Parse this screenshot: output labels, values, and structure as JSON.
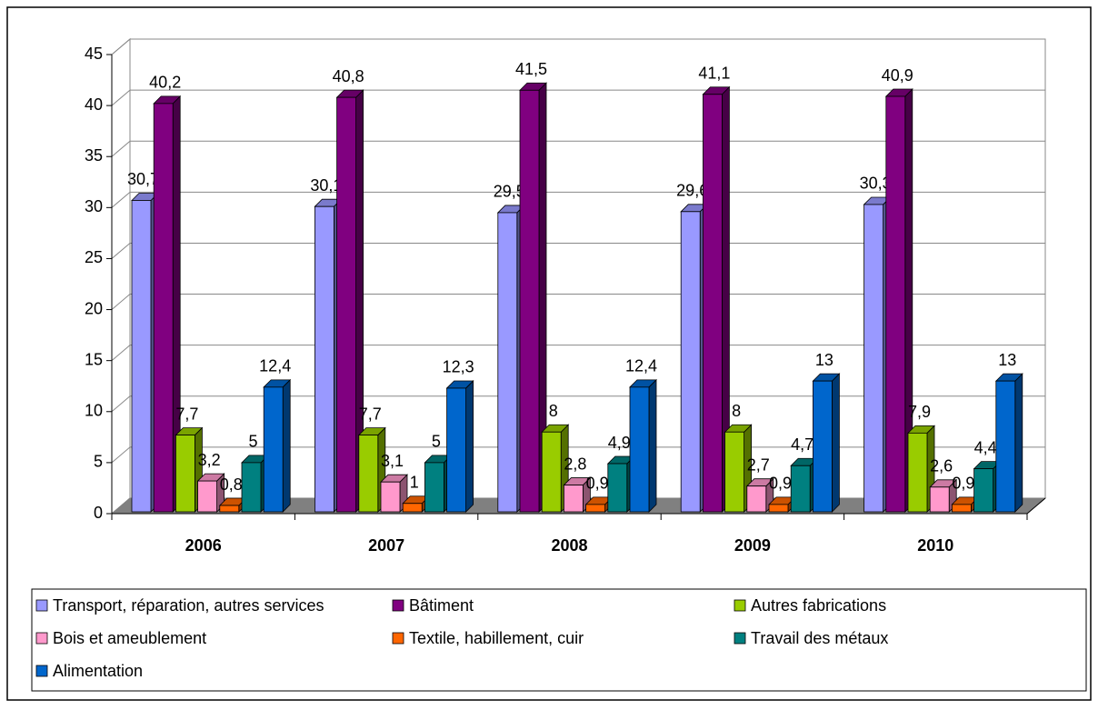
{
  "chart_data": {
    "type": "bar3d",
    "categories": [
      "2006",
      "2007",
      "2008",
      "2009",
      "2010"
    ],
    "series": [
      {
        "name": "Transport, réparation, autres services",
        "color": "#9999ff",
        "values": [
          30.7,
          30.1,
          29.5,
          29.6,
          30.3
        ],
        "value_labels": [
          "30,7",
          "30,1",
          "29,5",
          "29,6",
          "30,3"
        ]
      },
      {
        "name": "Bâtiment",
        "color": "#800080",
        "values": [
          40.2,
          40.8,
          41.5,
          41.1,
          40.9
        ],
        "value_labels": [
          "40,2",
          "40,8",
          "41,5",
          "41,1",
          "40,9"
        ]
      },
      {
        "name": "Autres fabrications",
        "color": "#99cc00",
        "values": [
          7.7,
          7.7,
          8,
          8,
          7.9
        ],
        "value_labels": [
          "7,7",
          "7,7",
          "8",
          "8",
          "7,9"
        ]
      },
      {
        "name": "Bois et ameublement",
        "color": "#ff99cc",
        "values": [
          3.2,
          3.1,
          2.8,
          2.7,
          2.6
        ],
        "value_labels": [
          "3,2",
          "3,1",
          "2,8",
          "2,7",
          "2,6"
        ]
      },
      {
        "name": "Textile, habillement, cuir",
        "color": "#ff6600",
        "values": [
          0.8,
          1,
          0.9,
          0.9,
          0.9
        ],
        "value_labels": [
          "0,8",
          "1",
          "0,9",
          "0,9",
          "0,9"
        ]
      },
      {
        "name": "Travail des métaux",
        "color": "#008080",
        "values": [
          5,
          5,
          4.9,
          4.7,
          4.4
        ],
        "value_labels": [
          "5",
          "5",
          "4,9",
          "4,7",
          "4,4"
        ]
      },
      {
        "name": "Alimentation",
        "color": "#0066cc",
        "values": [
          12.4,
          12.3,
          12.4,
          13,
          13
        ],
        "value_labels": [
          "12,4",
          "12,3",
          "12,4",
          "13",
          "13"
        ]
      }
    ],
    "ylim": [
      0,
      45
    ],
    "yticks": [
      0,
      5,
      10,
      15,
      20,
      25,
      30,
      35,
      40,
      45
    ],
    "grid": true,
    "legend": "bottom"
  }
}
